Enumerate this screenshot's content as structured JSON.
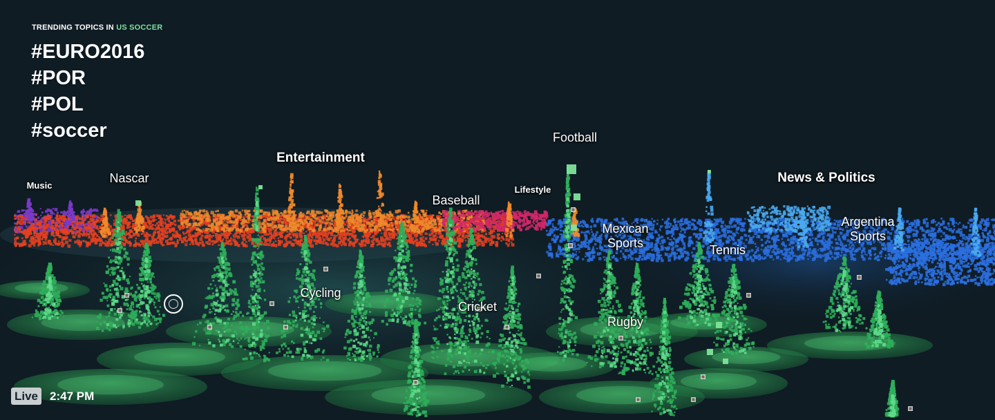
{
  "header": {
    "prefix": "TRENDING TOPICS IN",
    "location": "US SOCCER"
  },
  "trends": [
    "#EURO2016",
    "#POR",
    "#POL",
    "#soccer"
  ],
  "topics": {
    "music": "Music",
    "nascar": "Nascar",
    "entertainment": "Entertainment",
    "football": "Football",
    "lifestyle": "Lifestyle",
    "baseball": "Baseball",
    "news_politics": "News & Politics",
    "mexican_sports": "Mexican Sports",
    "tennis": "Tennis",
    "argentina_sports": "Argentina Sports",
    "cycling": "Cycling",
    "cricket": "Cricket",
    "rugby": "Rugby"
  },
  "status": {
    "live_label": "Live",
    "time": "2:47 PM"
  },
  "colors": {
    "background": "#0f1c24",
    "accent": "#7fe0a0",
    "sports_green": "#2fae5a",
    "entertainment_red": "#e8401e",
    "entertainment_orange": "#f08a2a",
    "music_purple": "#7a3ac8",
    "lifestyle_pink": "#d2286a",
    "news_blue": "#2a6fe0"
  },
  "icons": {
    "cursor": "focus-ring-icon"
  }
}
